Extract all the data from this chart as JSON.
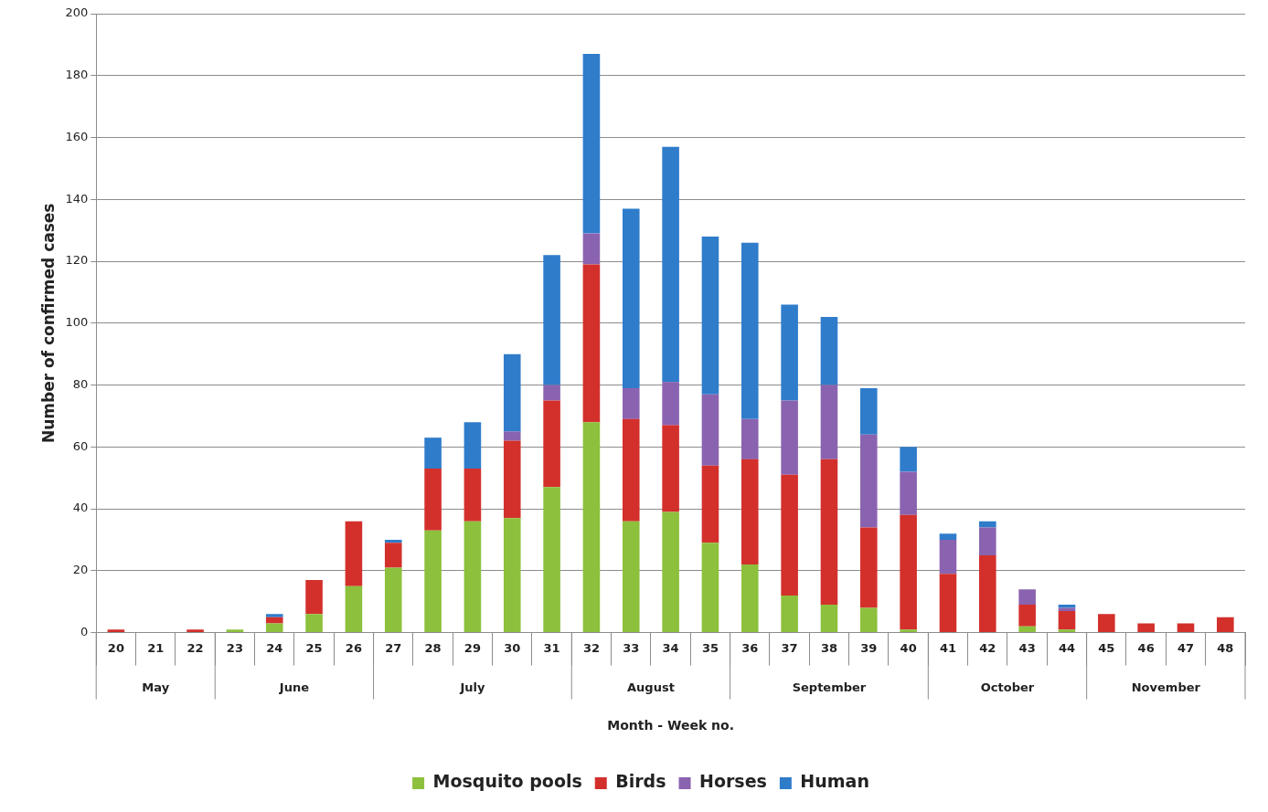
{
  "chart_data": {
    "type": "bar",
    "stacked": true,
    "xlabel": "Month - Week no.",
    "ylabel": "Number of confirmed cases",
    "categories": [
      "20",
      "21",
      "22",
      "23",
      "24",
      "25",
      "26",
      "27",
      "28",
      "29",
      "30",
      "31",
      "32",
      "33",
      "34",
      "35",
      "36",
      "37",
      "38",
      "39",
      "40",
      "41",
      "42",
      "43",
      "44",
      "45",
      "46",
      "47",
      "48"
    ],
    "series": [
      {
        "name": "Mosquito pools",
        "color": "#8dc03c",
        "values": [
          0,
          0,
          0,
          1,
          3,
          6,
          15,
          21,
          33,
          36,
          37,
          47,
          68,
          36,
          39,
          29,
          22,
          12,
          9,
          8,
          1,
          0,
          0,
          2,
          1,
          0,
          0,
          0,
          0
        ]
      },
      {
        "name": "Birds",
        "color": "#d3302c",
        "values": [
          1,
          0,
          1,
          0,
          2,
          11,
          21,
          8,
          20,
          17,
          25,
          28,
          51,
          33,
          28,
          25,
          34,
          39,
          47,
          26,
          37,
          19,
          25,
          7,
          6,
          6,
          3,
          3,
          5
        ]
      },
      {
        "name": "Horses",
        "color": "#8a63b0",
        "values": [
          0,
          0,
          0,
          0,
          0,
          0,
          0,
          0,
          0,
          0,
          3,
          5,
          10,
          10,
          14,
          23,
          13,
          24,
          24,
          30,
          14,
          11,
          9,
          5,
          1,
          0,
          0,
          0,
          0
        ]
      },
      {
        "name": "Human",
        "color": "#2f7ccb",
        "values": [
          0,
          0,
          0,
          0,
          1,
          0,
          0,
          1,
          10,
          15,
          25,
          42,
          58,
          58,
          76,
          51,
          57,
          31,
          22,
          15,
          8,
          2,
          2,
          0,
          1,
          0,
          0,
          0,
          0
        ]
      }
    ],
    "annotations": [
      "May",
      "June",
      "July",
      "August",
      "September",
      "October",
      "November"
    ],
    "ylim": [
      0,
      200
    ],
    "yticks": [
      0,
      20,
      40,
      60,
      80,
      100,
      120,
      140,
      160,
      180,
      200
    ],
    "grid": "y",
    "legend": "bottom"
  }
}
